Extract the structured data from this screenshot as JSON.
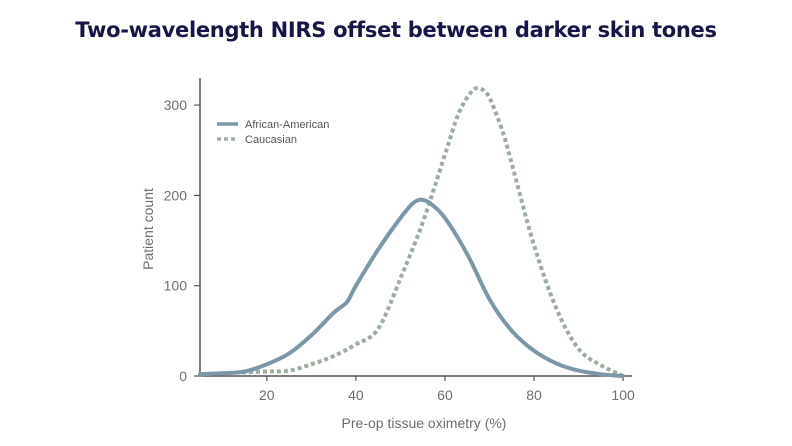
{
  "chart_data": {
    "type": "line",
    "title": "Two-wavelength NIRS offset between darker skin tones",
    "xlabel": "Pre-op tissue oximetry (%)",
    "ylabel": "Patient count",
    "xlim": [
      5,
      102
    ],
    "ylim": [
      0,
      330
    ],
    "x_ticks": [
      20,
      40,
      60,
      80,
      100
    ],
    "y_ticks": [
      0,
      100,
      200,
      300
    ],
    "legend_position": "top-left",
    "series": [
      {
        "name": "African-American",
        "style": "solid",
        "color": "#7b98a9",
        "x": [
          5,
          10,
          15,
          20,
          25,
          30,
          35,
          38,
          40,
          45,
          50,
          53,
          55,
          57,
          60,
          65,
          70,
          75,
          80,
          85,
          90,
          95,
          100
        ],
        "y": [
          2,
          3,
          5,
          13,
          25,
          45,
          70,
          82,
          100,
          140,
          175,
          192,
          195,
          190,
          175,
          135,
          85,
          50,
          28,
          14,
          6,
          2,
          0
        ]
      },
      {
        "name": "Caucasian",
        "style": "dotted",
        "color": "#9caf9e",
        "x": [
          5,
          10,
          15,
          20,
          25,
          30,
          35,
          40,
          45,
          50,
          55,
          60,
          63,
          66,
          68,
          70,
          73,
          75,
          80,
          85,
          90,
          95,
          100
        ],
        "y": [
          2,
          3,
          4,
          5,
          6,
          13,
          22,
          35,
          52,
          108,
          170,
          245,
          290,
          315,
          318,
          308,
          270,
          235,
          145,
          75,
          30,
          12,
          0
        ]
      }
    ]
  }
}
